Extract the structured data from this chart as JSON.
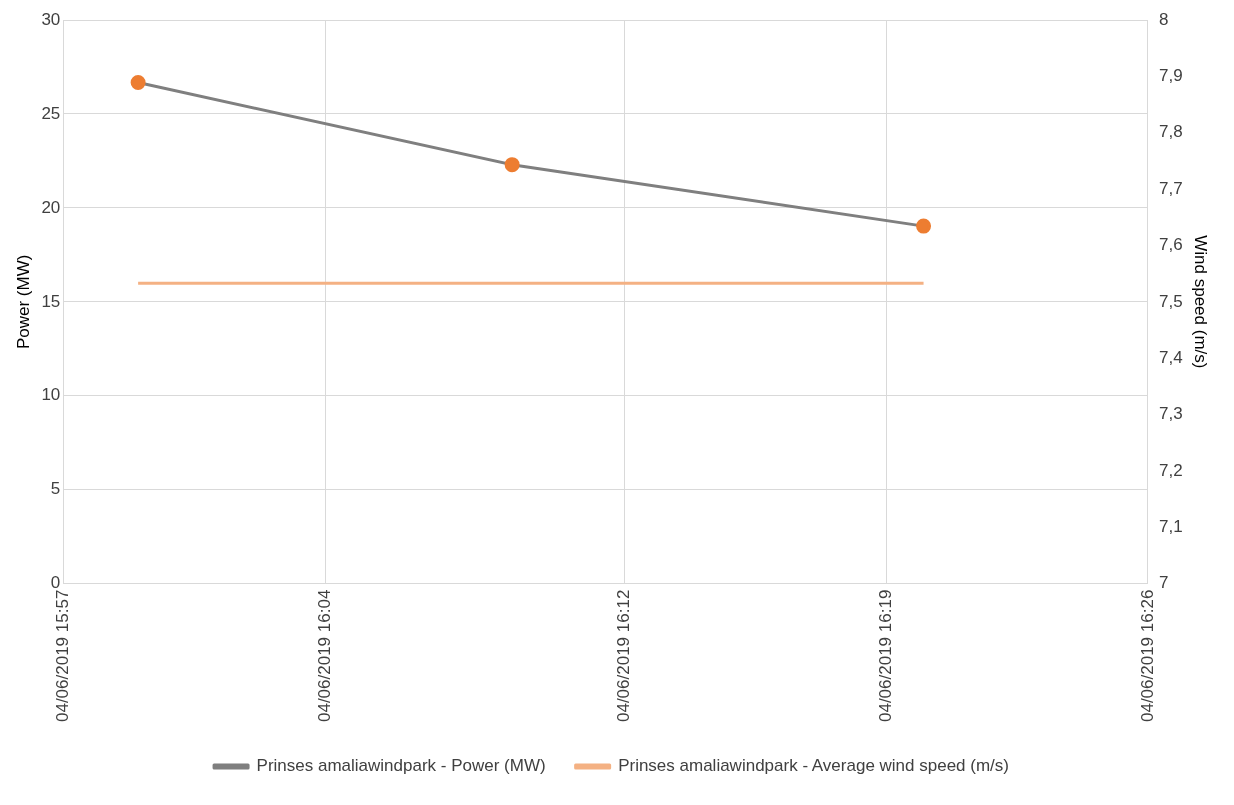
{
  "chart_data": {
    "type": "line",
    "ylabel": "Power (MW)",
    "y2label": "Wind speed (m/s)",
    "x": [
      "2019-06-04T15:59",
      "2019-06-04T16:09",
      "2019-06-04T16:20"
    ],
    "series": [
      {
        "name": "Prinses amaliawindpark - Power (MW)",
        "color": "#7f7f7f",
        "colors": [
          "#ed7d31",
          "#ed7d31",
          "#ed7d31"
        ],
        "marker": "circle",
        "values": [
          26.67,
          22.3,
          19.03
        ]
      },
      {
        "name": "Prinses amaliawindpark - Average wind speed (m/s)",
        "color": "#f4b183",
        "marker": "none",
        "axis": "y2",
        "values": [
          7.533,
          7.533,
          7.533
        ]
      }
    ],
    "xlim": [
      "2019-06-04T15:57",
      "2019-06-04T16:26"
    ],
    "xticks": [
      {
        "value": "2019-06-04T15:57",
        "label": "04/06/2019 15:57"
      },
      {
        "value": "2019-06-04T16:04",
        "label": "04/06/2019 16:04"
      },
      {
        "value": "2019-06-04T16:12",
        "label": "04/06/2019 16:12"
      },
      {
        "value": "2019-06-04T16:19",
        "label": "04/06/2019 16:19"
      },
      {
        "value": "2019-06-04T16:26",
        "label": "04/06/2019 16:26"
      }
    ],
    "ylim": [
      0,
      30
    ],
    "yticks": [
      0,
      5,
      10,
      15,
      20,
      25,
      30
    ],
    "y2lim": [
      7,
      8
    ],
    "y2ticks": [
      7,
      {
        "value": 7.1,
        "label": "7,1"
      },
      {
        "value": 7.2,
        "label": "7,2"
      },
      {
        "value": 7.3,
        "label": "7,3"
      },
      {
        "value": 7.4,
        "label": "7,4"
      },
      {
        "value": 7.5,
        "label": "7,5"
      },
      {
        "value": 7.6,
        "label": "7,6"
      },
      {
        "value": 7.7,
        "label": "7,7"
      },
      {
        "value": 7.8,
        "label": "7,8"
      },
      {
        "value": 7.9,
        "label": "7,9"
      },
      8
    ],
    "grid": true,
    "legend": "bottom",
    "line_style": "solid"
  }
}
